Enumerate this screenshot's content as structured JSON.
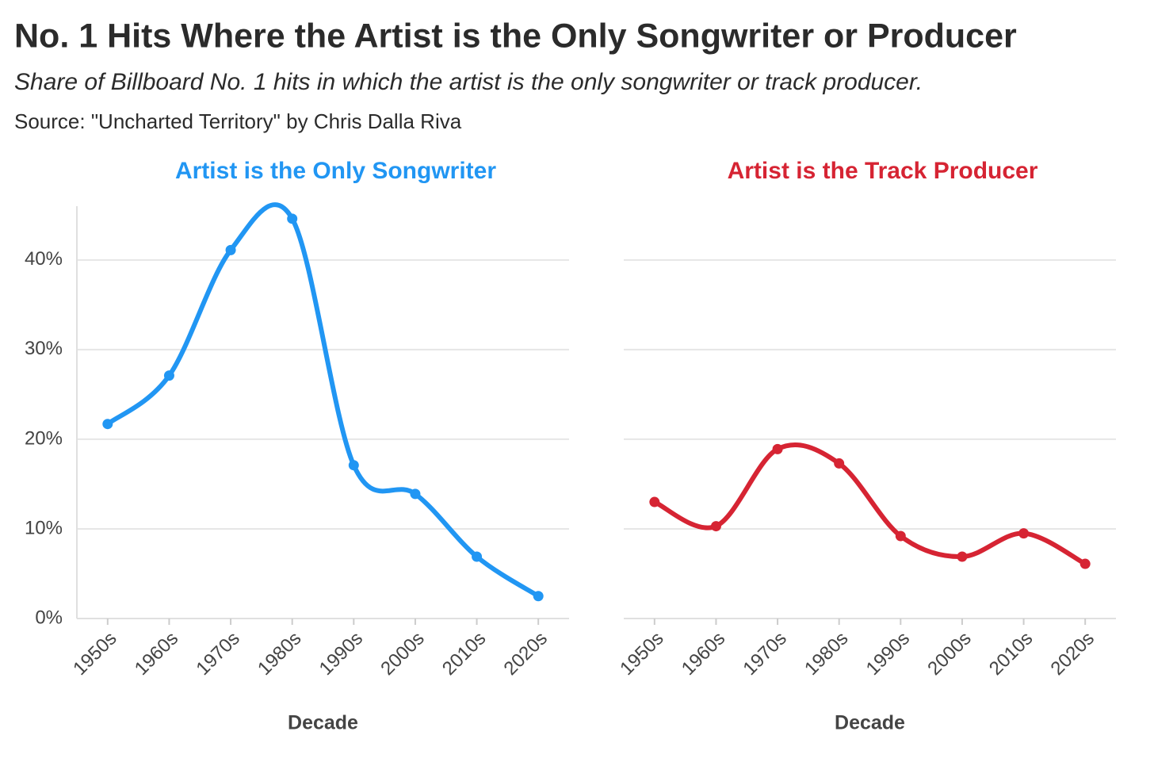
{
  "header": {
    "title": "No. 1 Hits Where the Artist is the Only Songwriter or Producer",
    "subtitle": "Share of Billboard No. 1 hits in which the artist is the only songwriter or track producer.",
    "source": "Source: \"Uncharted Territory\" by Chris Dalla Riva"
  },
  "chart_data": [
    {
      "type": "line",
      "title": "Artist is the Only Songwriter",
      "color": "#2196f3",
      "x_label": "Decade",
      "categories": [
        "1950s",
        "1960s",
        "1970s",
        "1980s",
        "1990s",
        "2000s",
        "2010s",
        "2020s"
      ],
      "values": [
        21.7,
        27.1,
        41.1,
        44.6,
        17.1,
        13.9,
        6.9,
        2.5
      ],
      "ylim": [
        0,
        46
      ],
      "yticks": [
        {
          "value": 0,
          "label": "0%"
        },
        {
          "value": 10,
          "label": "10%"
        },
        {
          "value": 20,
          "label": "20%"
        },
        {
          "value": 30,
          "label": "30%"
        },
        {
          "value": 40,
          "label": "40%"
        }
      ],
      "grid": true
    },
    {
      "type": "line",
      "title": "Artist is the Track Producer",
      "color": "#d62433",
      "x_label": "Decade",
      "categories": [
        "1950s",
        "1960s",
        "1970s",
        "1980s",
        "1990s",
        "2000s",
        "2010s",
        "2020s"
      ],
      "values": [
        13.0,
        10.3,
        18.9,
        17.3,
        9.2,
        6.9,
        9.5,
        6.1
      ],
      "ylim": [
        0,
        46
      ],
      "yticks": [
        0,
        10,
        20,
        30,
        40
      ],
      "grid": true
    }
  ]
}
